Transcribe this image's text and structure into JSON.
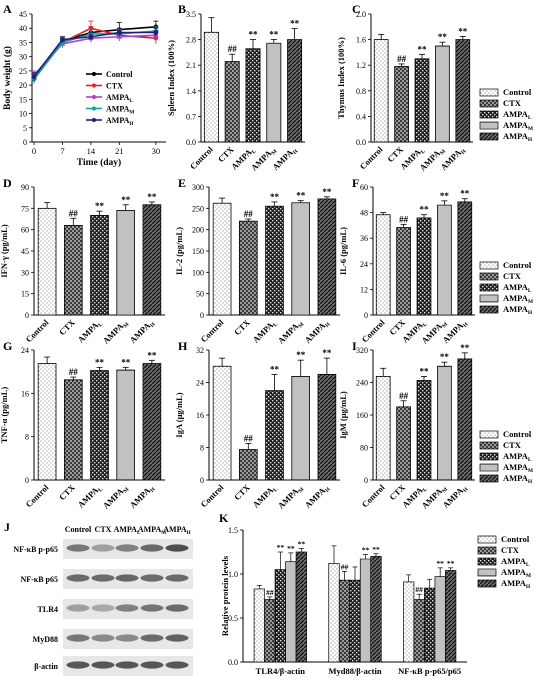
{
  "colors": {
    "control": "#ffffff",
    "ctx": "#555555",
    "low": "#2e2e2e",
    "mid": "#d9d9d9",
    "high": "#444444",
    "ink": "#000000"
  },
  "legend_common": [
    "Control",
    "CTX",
    "AMPA",
    "AMPA",
    "AMPA"
  ],
  "legend_subs": [
    "",
    "",
    "L",
    "M",
    "H"
  ],
  "groups": [
    "Control",
    "CTX",
    "AMPA",
    "AMPA",
    "AMPA"
  ],
  "group_subs": [
    "",
    "",
    "L",
    "M",
    "H"
  ],
  "chart_data": [
    {
      "panel": "A",
      "type": "line",
      "xlabel": "Time (day)",
      "ylabel": "Body weight (g)",
      "x": [
        0,
        7,
        14,
        21,
        30
      ],
      "xticks": [
        "0",
        "7",
        "14",
        "21",
        "30"
      ],
      "ylim": [
        0,
        45
      ],
      "yticks": [
        "0",
        "5",
        "10",
        "15",
        "20",
        "25",
        "30",
        "35",
        "40",
        "45"
      ],
      "legend": [
        "Control",
        "CTX",
        "AMPA",
        "AMPA",
        "AMPA"
      ],
      "legend_subs": [
        "",
        "",
        "L",
        "M",
        "H"
      ],
      "series": [
        {
          "name": "Control",
          "color": "#000000",
          "marker": "circle",
          "values": [
            22.5,
            35.5,
            38.5,
            39.5,
            40.5
          ],
          "err": [
            1.5,
            1.5,
            2.0,
            2.5,
            2.0
          ]
        },
        {
          "name": "CTX",
          "color": "#e8202a",
          "marker": "circle",
          "values": [
            23,
            35,
            40,
            37.5,
            36.5
          ],
          "err": [
            1.5,
            1.5,
            2.5,
            2.0,
            2.0
          ]
        },
        {
          "name": "AMPA",
          "color": "#b040d0",
          "marker": "triangle",
          "values": [
            23.5,
            34.5,
            36.5,
            37,
            37.5
          ],
          "err": [
            1.5,
            1.5,
            1.5,
            1.5,
            1.5
          ]
        },
        {
          "name": "AMPA",
          "color": "#1aa090",
          "marker": "diamond",
          "values": [
            22,
            35,
            38,
            38,
            39
          ],
          "err": [
            1.5,
            1.5,
            1.5,
            1.5,
            1.5
          ]
        },
        {
          "name": "AMPA",
          "color": "#20207a",
          "marker": "square",
          "values": [
            23,
            36,
            37,
            38.5,
            38.5
          ],
          "err": [
            1.5,
            1.0,
            1.5,
            1.5,
            1.5
          ]
        }
      ]
    },
    {
      "panel": "B",
      "type": "bar",
      "ylabel": "Spleen Index (100%)",
      "ylim": [
        0,
        3.5
      ],
      "yticks": [
        "0.0",
        "0.7",
        "1.4",
        "2.1",
        "2.8",
        "3.5"
      ],
      "values": [
        3.0,
        2.2,
        2.55,
        2.7,
        2.8
      ],
      "err": [
        0.4,
        0.2,
        0.25,
        0.1,
        0.3
      ],
      "marks": [
        "",
        "##",
        "**",
        "**",
        "**"
      ]
    },
    {
      "panel": "C",
      "type": "bar",
      "ylabel": "Thymus Index (100%)",
      "ylim": [
        0,
        2.0
      ],
      "yticks": [
        "0.0",
        "0.4",
        "0.8",
        "1.2",
        "1.6",
        "2.0"
      ],
      "values": [
        1.6,
        1.18,
        1.3,
        1.5,
        1.6
      ],
      "err": [
        0.08,
        0.04,
        0.07,
        0.06,
        0.05
      ],
      "marks": [
        "",
        "##",
        "**",
        "**",
        "**"
      ]
    },
    {
      "panel": "D",
      "type": "bar",
      "ylabel": "IFN-γ (pg/mL)",
      "ylim": [
        0,
        90
      ],
      "yticks": [
        "0",
        "15",
        "30",
        "45",
        "60",
        "75",
        "90"
      ],
      "values": [
        75,
        63,
        70,
        73.5,
        77.5
      ],
      "err": [
        4,
        5,
        3,
        4,
        2
      ],
      "marks": [
        "",
        "##",
        "**",
        "**",
        "**"
      ]
    },
    {
      "panel": "E",
      "type": "bar",
      "ylabel": "IL-2 (pg/mL)",
      "ylim": [
        0,
        300
      ],
      "yticks": [
        "0",
        "50",
        "100",
        "150",
        "200",
        "250",
        "300"
      ],
      "values": [
        262,
        220,
        255,
        263,
        272
      ],
      "err": [
        12,
        5,
        10,
        5,
        5
      ],
      "marks": [
        "",
        "##",
        "**",
        "**",
        "**"
      ]
    },
    {
      "panel": "F",
      "type": "bar",
      "ylabel": "IL-6 (pg/mL)",
      "ylim": [
        0,
        60
      ],
      "yticks": [
        "0",
        "12",
        "24",
        "36",
        "48",
        "60"
      ],
      "values": [
        47,
        41,
        45.5,
        51.5,
        53
      ],
      "err": [
        1,
        1.5,
        1.5,
        2,
        1.5
      ],
      "marks": [
        "",
        "##",
        "**",
        "**",
        "**"
      ]
    },
    {
      "panel": "G",
      "type": "bar",
      "ylabel": "TNF-α (pg/mL)",
      "ylim": [
        0,
        24
      ],
      "yticks": [
        "0",
        "8",
        "16",
        "24"
      ],
      "values": [
        21.5,
        18.5,
        20.2,
        20.3,
        21.5
      ],
      "err": [
        1.2,
        0.5,
        0.6,
        0.5,
        0.6
      ],
      "marks": [
        "",
        "##",
        "**",
        "**",
        "**"
      ]
    },
    {
      "panel": "H",
      "type": "bar",
      "ylabel": "IgA (μg/mL)",
      "ylim": [
        0,
        32
      ],
      "yticks": [
        "0",
        "8",
        "16",
        "24",
        "32"
      ],
      "values": [
        28,
        7.5,
        22,
        25.5,
        26
      ],
      "err": [
        2,
        1.5,
        4,
        4,
        4
      ],
      "marks": [
        "",
        "##",
        "**",
        "**",
        "**"
      ]
    },
    {
      "panel": "I",
      "type": "bar",
      "ylabel": "IgM (μg/mL)",
      "ylim": [
        0,
        320
      ],
      "yticks": [
        "0",
        "80",
        "160",
        "240",
        "320"
      ],
      "values": [
        255,
        180,
        245,
        280,
        298
      ],
      "err": [
        20,
        15,
        10,
        10,
        15
      ],
      "marks": [
        "",
        "##",
        "**",
        "**",
        "**"
      ]
    },
    {
      "panel": "K",
      "type": "bar",
      "ylabel": "Relative protein levels",
      "ylim": [
        0,
        1.5
      ],
      "yticks": [
        "0.0",
        "0.5",
        "1.0",
        "1.5"
      ],
      "categories": [
        "TLR4/β-actin",
        "Myd88/β-actin",
        "NF-κB p-p65/p65"
      ],
      "series": [
        {
          "name": "Control",
          "values": [
            0.83,
            1.12,
            0.91
          ],
          "err": [
            0.04,
            0.2,
            0.08
          ],
          "marks": [
            "",
            "",
            ""
          ]
        },
        {
          "name": "CTX",
          "values": [
            0.71,
            0.93,
            0.71
          ],
          "err": [
            0.03,
            0.1,
            0.06
          ],
          "marks": [
            "##",
            "##",
            "##"
          ]
        },
        {
          "name": "AMPA",
          "values": [
            1.05,
            0.93,
            0.84
          ],
          "err": [
            0.2,
            0.15,
            0.1
          ],
          "marks": [
            "**",
            "",
            ""
          ]
        },
        {
          "name": "AMPA",
          "values": [
            1.14,
            1.17,
            0.97
          ],
          "err": [
            0.1,
            0.05,
            0.1
          ],
          "marks": [
            "**",
            "**",
            "**"
          ]
        },
        {
          "name": "AMPA",
          "values": [
            1.25,
            1.2,
            1.04
          ],
          "err": [
            0.04,
            0.03,
            0.03
          ],
          "marks": [
            "**",
            "**",
            "**"
          ]
        }
      ]
    }
  ],
  "blot": {
    "panel": "J",
    "header": [
      "Control",
      "CTX",
      "AMPA",
      "AMPA",
      "AMPA"
    ],
    "header_subs": [
      "",
      "",
      "L",
      "M",
      "H"
    ],
    "rows": [
      "NF-κB p-p65",
      "NF-κB p65",
      "TLR4",
      "MyD88",
      "β-actin"
    ]
  }
}
